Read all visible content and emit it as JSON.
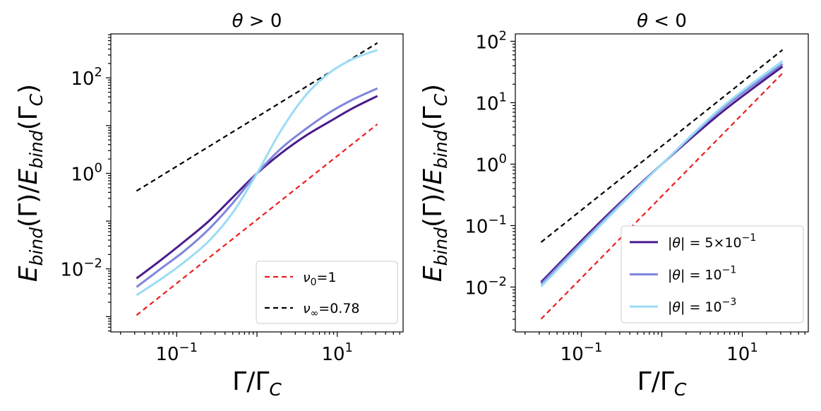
{
  "chart_data": [
    {
      "type": "line",
      "title": "θ > 0",
      "xlabel": "Γ/Γ_C",
      "ylabel": "E_bind(Γ)/E_bind(Γ_C)",
      "xscale": "log",
      "yscale": "log",
      "xlim_log10": [
        -1.82,
        1.82
      ],
      "ylim_log10": [
        -3.32,
        2.92
      ],
      "xtick_labels": [
        {
          "exp": -1,
          "label": "10^-1"
        },
        {
          "exp": 1,
          "label": "10^1"
        }
      ],
      "ytick_labels": [
        {
          "exp": -2,
          "label": "10^-2"
        },
        {
          "exp": 0,
          "label": "10^0"
        },
        {
          "exp": 2,
          "label": "10^2"
        }
      ],
      "legend_position": "lower-right",
      "legend": [
        {
          "label_main": "ν",
          "label_sub": "0",
          "label_rest": "=1",
          "color": "#ee1c1c",
          "dashed": true
        },
        {
          "label_main": "ν",
          "label_sub": "∞",
          "label_rest": "=0.78",
          "color": "#000000",
          "dashed": true
        }
      ],
      "series": [
        {
          "name": "ν0=1",
          "color": "#ee1c1c",
          "dashed": true,
          "x_log10": [
            -1.5,
            1.5
          ],
          "y_log10": [
            -2.97,
            1.03
          ]
        },
        {
          "name": "ν∞=0.78",
          "color": "#000000",
          "dashed": true,
          "x_log10": [
            -1.5,
            1.5
          ],
          "y_log10": [
            -0.37,
            2.73
          ]
        },
        {
          "name": "|θ|=5×10^-1",
          "color": "#4a1a8c",
          "dashed": false,
          "x_log10": [
            -1.5,
            -1.2,
            -0.9,
            -0.6,
            -0.3,
            0,
            0.3,
            0.6,
            0.9,
            1.2,
            1.5
          ],
          "y_log10": [
            -2.2,
            -1.82,
            -1.42,
            -1.0,
            -0.5,
            0.0,
            0.42,
            0.78,
            1.08,
            1.37,
            1.62
          ]
        },
        {
          "name": "|θ|=10^-1",
          "color": "#7f86dc",
          "dashed": false,
          "x_log10": [
            -1.5,
            -1.2,
            -0.9,
            -0.6,
            -0.3,
            0,
            0.3,
            0.6,
            0.9,
            1.2,
            1.5
          ],
          "y_log10": [
            -2.38,
            -2.0,
            -1.62,
            -1.17,
            -0.62,
            0.0,
            0.52,
            0.92,
            1.27,
            1.55,
            1.78
          ]
        },
        {
          "name": "|θ|=10^-3",
          "color": "#9bdcf4",
          "dashed": false,
          "x_log10": [
            -1.5,
            -1.2,
            -0.9,
            -0.6,
            -0.3,
            0,
            0.3,
            0.6,
            0.9,
            1.2,
            1.5
          ],
          "y_log10": [
            -2.55,
            -2.22,
            -1.85,
            -1.42,
            -0.82,
            0.0,
            0.9,
            1.62,
            2.1,
            2.4,
            2.58
          ]
        }
      ]
    },
    {
      "type": "line",
      "title": "θ < 0",
      "xlabel": "Γ/Γ_C",
      "ylabel": "E_bind(Γ)/E_bind(Γ_C)",
      "xscale": "log",
      "yscale": "log",
      "xlim_log10": [
        -1.82,
        1.82
      ],
      "ylim_log10": [
        -2.73,
        2.12
      ],
      "xtick_labels": [
        {
          "exp": -1,
          "label": "10^-1"
        },
        {
          "exp": 1,
          "label": "10^1"
        }
      ],
      "ytick_labels": [
        {
          "exp": -2,
          "label": "10^-2"
        },
        {
          "exp": -1,
          "label": "10^-1"
        },
        {
          "exp": 0,
          "label": "10^0"
        },
        {
          "exp": 1,
          "label": "10^1"
        },
        {
          "exp": 2,
          "label": "10^2"
        }
      ],
      "legend_position": "center-right",
      "legend": [
        {
          "label_main": "|θ| = 5×10",
          "label_sup": "−1",
          "color": "#4a1a8c",
          "dashed": false
        },
        {
          "label_main": "|θ| = 10",
          "label_sup": "−1",
          "color": "#7f86dc",
          "dashed": false
        },
        {
          "label_main": "|θ| = 10",
          "label_sup": "−3",
          "color": "#9bdcf4",
          "dashed": false
        }
      ],
      "series": [
        {
          "name": "ν0=1",
          "color": "#ee1c1c",
          "dashed": true,
          "x_log10": [
            -1.5,
            1.5
          ],
          "y_log10": [
            -2.52,
            1.48
          ]
        },
        {
          "name": "ν∞=0.78",
          "color": "#000000",
          "dashed": true,
          "x_log10": [
            -1.5,
            1.5
          ],
          "y_log10": [
            -1.27,
            1.86
          ]
        },
        {
          "name": "|θ|=5×10^-1",
          "color": "#4a1a8c",
          "dashed": false,
          "x_log10": [
            -1.5,
            -0.75,
            0,
            0.75,
            1.5
          ],
          "y_log10": [
            -1.92,
            -0.92,
            0.0,
            0.85,
            1.59
          ]
        },
        {
          "name": "|θ|=10^-1",
          "color": "#7f86dc",
          "dashed": false,
          "x_log10": [
            -1.5,
            -0.75,
            0,
            0.75,
            1.5
          ],
          "y_log10": [
            -1.95,
            -0.95,
            0.0,
            0.9,
            1.63
          ]
        },
        {
          "name": "|θ|=10^-3",
          "color": "#9bdcf4",
          "dashed": false,
          "x_log10": [
            -1.5,
            -0.75,
            0,
            0.75,
            1.5
          ],
          "y_log10": [
            -1.99,
            -0.98,
            0.0,
            0.93,
            1.68
          ]
        }
      ]
    }
  ]
}
